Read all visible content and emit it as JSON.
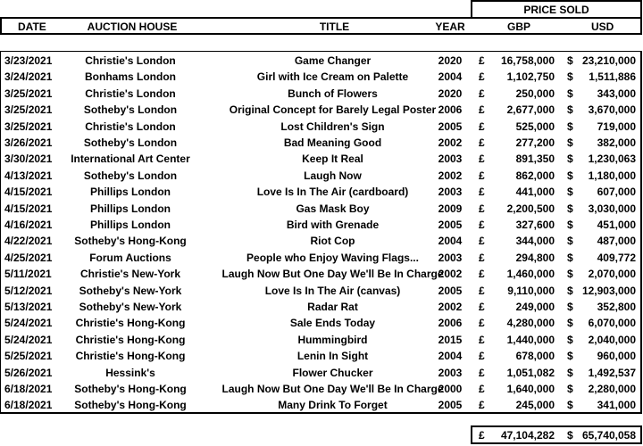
{
  "header": {
    "price_sold": "PRICE SOLD",
    "date": "DATE",
    "auction_house": "AUCTION HOUSE",
    "title": "TITLE",
    "year": "YEAR",
    "gbp": "GBP",
    "usd": "USD"
  },
  "currency": {
    "pound": "£",
    "dollar": "$"
  },
  "rows": [
    {
      "date": "3/23/2021",
      "house": "Christie's London",
      "title": "Game Changer",
      "year": "2020",
      "gbp": "16,758,000",
      "usd": "23,210,000"
    },
    {
      "date": "3/24/2021",
      "house": "Bonhams London",
      "title": "Girl with Ice Cream on Palette",
      "year": "2004",
      "gbp": "1,102,750",
      "usd": "1,511,886"
    },
    {
      "date": "3/25/2021",
      "house": "Christie's London",
      "title": "Bunch of Flowers",
      "year": "2020",
      "gbp": "250,000",
      "usd": "343,000"
    },
    {
      "date": "3/25/2021",
      "house": "Sotheby's London",
      "title": "Original Concept for Barely Legal Poster",
      "year": "2006",
      "gbp": "2,677,000",
      "usd": "3,670,000"
    },
    {
      "date": "3/25/2021",
      "house": "Christie's London",
      "title": "Lost Children's Sign",
      "year": "2005",
      "gbp": "525,000",
      "usd": "719,000"
    },
    {
      "date": "3/26/2021",
      "house": "Sotheby's London",
      "title": "Bad Meaning Good",
      "year": "2002",
      "gbp": "277,200",
      "usd": "382,000"
    },
    {
      "date": "3/30/2021",
      "house": "International Art Center",
      "title": "Keep It Real",
      "year": "2003",
      "gbp": "891,350",
      "usd": "1,230,063"
    },
    {
      "date": "4/13/2021",
      "house": "Sotheby's London",
      "title": "Laugh Now",
      "year": "2002",
      "gbp": "862,000",
      "usd": "1,180,000"
    },
    {
      "date": "4/15/2021",
      "house": "Phillips London",
      "title": "Love Is In The Air (cardboard)",
      "year": "2003",
      "gbp": "441,000",
      "usd": "607,000"
    },
    {
      "date": "4/15/2021",
      "house": "Phillips London",
      "title": "Gas Mask Boy",
      "year": "2009",
      "gbp": "2,200,500",
      "usd": "3,030,000"
    },
    {
      "date": "4/16/2021",
      "house": "Phillips London",
      "title": "Bird with Grenade",
      "year": "2005",
      "gbp": "327,600",
      "usd": "451,000"
    },
    {
      "date": "4/22/2021",
      "house": "Sotheby's Hong-Kong",
      "title": "Riot Cop",
      "year": "2004",
      "gbp": "344,000",
      "usd": "487,000"
    },
    {
      "date": "4/25/2021",
      "house": "Forum Auctions",
      "title": "People who Enjoy Waving Flags...",
      "year": "2003",
      "gbp": "294,800",
      "usd": "409,772"
    },
    {
      "date": "5/11/2021",
      "house": "Christie's New-York",
      "title": "Laugh Now But One Day We'll Be In Charge",
      "year": "2002",
      "gbp": "1,460,000",
      "usd": "2,070,000"
    },
    {
      "date": "5/12/2021",
      "house": "Sotheby's New-York",
      "title": "Love Is In The Air (canvas)",
      "year": "2005",
      "gbp": "9,110,000",
      "usd": "12,903,000"
    },
    {
      "date": "5/13/2021",
      "house": "Sotheby's New-York",
      "title": "Radar Rat",
      "year": "2002",
      "gbp": "249,000",
      "usd": "352,800"
    },
    {
      "date": "5/24/2021",
      "house": "Christie's Hong-Kong",
      "title": "Sale Ends Today",
      "year": "2006",
      "gbp": "4,280,000",
      "usd": "6,070,000"
    },
    {
      "date": "5/24/2021",
      "house": "Christie's Hong-Kong",
      "title": "Hummingbird",
      "year": "2015",
      "gbp": "1,440,000",
      "usd": "2,040,000"
    },
    {
      "date": "5/25/2021",
      "house": "Christie's Hong-Kong",
      "title": "Lenin In Sight",
      "year": "2004",
      "gbp": "678,000",
      "usd": "960,000"
    },
    {
      "date": "5/26/2021",
      "house": "Hessink's",
      "title": "Flower Chucker",
      "year": "2003",
      "gbp": "1,051,082",
      "usd": "1,492,537"
    },
    {
      "date": "6/18/2021",
      "house": "Sotheby's Hong-Kong",
      "title": "Laugh Now But One Day We'll Be In Charge",
      "year": "2000",
      "gbp": "1,640,000",
      "usd": "2,280,000"
    },
    {
      "date": "6/18/2021",
      "house": "Sotheby's Hong-Kong",
      "title": "Many Drink To Forget",
      "year": "2005",
      "gbp": "245,000",
      "usd": "341,000"
    }
  ],
  "totals": {
    "gbp": "47,104,282",
    "usd": "65,740,058"
  }
}
